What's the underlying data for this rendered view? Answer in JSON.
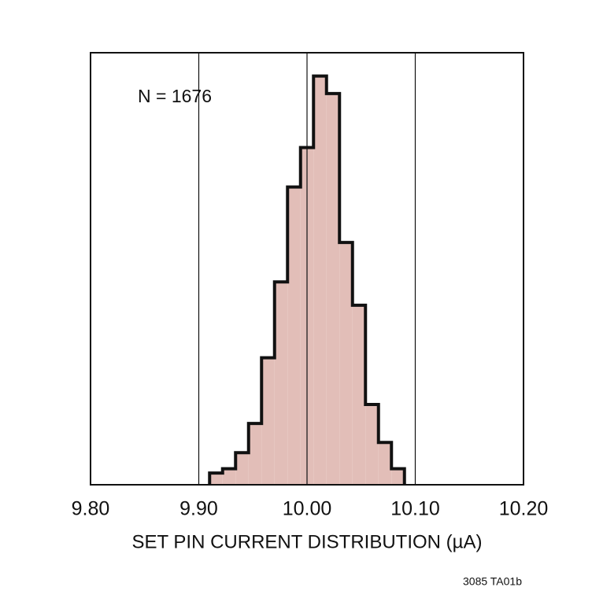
{
  "chart_data": {
    "type": "histogram",
    "xlabel": "SET PIN CURRENT DISTRIBUTION (µA)",
    "annotations": [
      "N = 1676",
      "3085 TA01b"
    ],
    "bins": [
      9.91,
      9.922,
      9.934,
      9.946,
      9.958,
      9.97,
      9.982,
      9.994,
      10.006,
      10.018,
      10.03,
      10.042,
      10.054,
      10.066,
      10.078,
      10.09
    ],
    "values": [
      8,
      11,
      22,
      42,
      87,
      139,
      204,
      231,
      280,
      268,
      166,
      123,
      55,
      29,
      11
    ],
    "color": "#e2beb8",
    "edgecolor": "#111111",
    "xlim": [
      9.8,
      10.2
    ],
    "xticks": [
      {
        "value": 9.8,
        "label": "9.80"
      },
      {
        "value": 9.9,
        "label": "9.90"
      },
      {
        "value": 10.0,
        "label": "10.00"
      },
      {
        "value": 10.1,
        "label": "10.10"
      },
      {
        "value": 10.2,
        "label": "10.20"
      }
    ],
    "ylim": [
      0,
      296
    ],
    "grid": true
  }
}
